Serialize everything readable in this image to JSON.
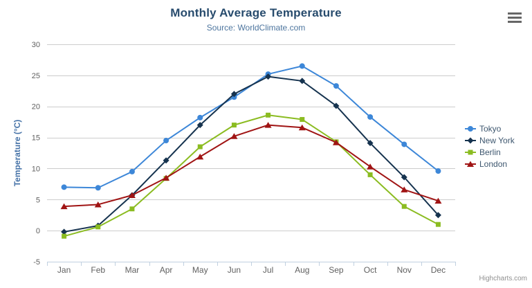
{
  "chart_data": {
    "type": "line",
    "title": "Monthly Average Temperature",
    "subtitle": "Source: WorldClimate.com",
    "xlabel": "",
    "ylabel": "Temperature (°C)",
    "categories": [
      "Jan",
      "Feb",
      "Mar",
      "Apr",
      "May",
      "Jun",
      "Jul",
      "Aug",
      "Sep",
      "Oct",
      "Nov",
      "Dec"
    ],
    "series": [
      {
        "name": "Tokyo",
        "color": "#3d87d8",
        "marker": "circle",
        "values": [
          7.0,
          6.9,
          9.5,
          14.5,
          18.2,
          21.5,
          25.2,
          26.5,
          23.3,
          18.3,
          13.9,
          9.6
        ]
      },
      {
        "name": "New York",
        "color": "#16334f",
        "marker": "diamond",
        "values": [
          -0.2,
          0.8,
          5.7,
          11.3,
          17.0,
          22.0,
          24.8,
          24.1,
          20.1,
          14.1,
          8.6,
          2.5
        ]
      },
      {
        "name": "Berlin",
        "color": "#8bbc21",
        "marker": "square",
        "values": [
          -0.9,
          0.6,
          3.5,
          8.4,
          13.5,
          17.0,
          18.6,
          17.9,
          14.3,
          9.0,
          3.9,
          1.0
        ]
      },
      {
        "name": "London",
        "color": "#a01414",
        "marker": "triangle",
        "values": [
          3.9,
          4.2,
          5.7,
          8.5,
          11.9,
          15.2,
          17.0,
          16.6,
          14.2,
          10.3,
          6.6,
          4.8
        ]
      }
    ],
    "ylim": [
      -5,
      30
    ],
    "ytick_step": 5,
    "grid": true,
    "legend_position": "right",
    "colors": {
      "title_text": "#274b6d",
      "subtitle_text": "#4d759e",
      "axis_title_text": "#4572a7",
      "tick_label_text": "#606060",
      "grid_line": "#cccccc",
      "axis_line": "#c0d0e0",
      "legend_text": "#3e576f"
    }
  },
  "credits": {
    "label": "Highcharts.com"
  }
}
